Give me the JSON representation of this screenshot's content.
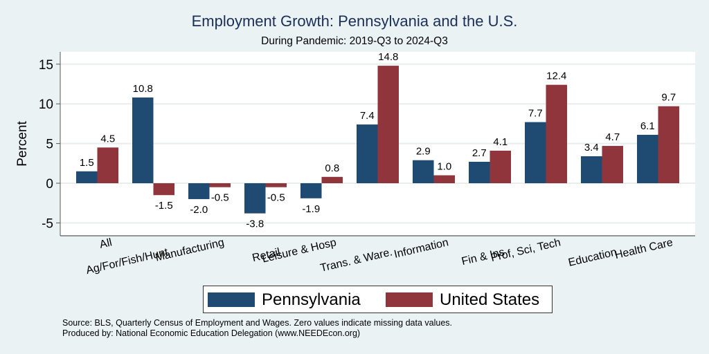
{
  "title": "Employment Growth: Pennsylvania and the U.S.",
  "subtitle": "During Pandemic: 2019-Q3 to 2024-Q3",
  "legend": {
    "items": [
      {
        "label": "Pennsylvania",
        "color": "#1f4a72"
      },
      {
        "label": "United States",
        "color": "#90353b"
      }
    ]
  },
  "notes": {
    "source": "Source: BLS, Quarterly Census of Employment and Wages. Zero values indicate missing data values.",
    "produced_by": "Produced by: National Economic Education Delegation (www.NEEDEcon.org)"
  },
  "chart_data": {
    "type": "bar",
    "title": "Employment Growth: Pennsylvania and the U.S.",
    "subtitle": "During Pandemic: 2019-Q3 to 2024-Q3",
    "xlabel": "",
    "ylabel": "Percent",
    "ylim": [
      -6.5,
      16.5
    ],
    "yticks": [
      -5,
      0,
      5,
      10,
      15
    ],
    "grid": true,
    "legend_position": "bottom",
    "categories": [
      "All",
      "Ag/For/Fish/Hunt",
      "Manufacturing",
      "Retail",
      "Leisure & Hosp",
      "Trans. & Ware.",
      "Information",
      "Fin & Ins",
      "Prof, Sci, Tech",
      "Education",
      "Health Care"
    ],
    "series": [
      {
        "name": "Pennsylvania",
        "color": "#1f4a72",
        "values": [
          1.5,
          10.8,
          -2.0,
          -3.8,
          -1.9,
          7.4,
          2.9,
          2.7,
          7.7,
          3.4,
          6.1
        ]
      },
      {
        "name": "United States",
        "color": "#90353b",
        "values": [
          4.5,
          -1.5,
          -0.5,
          -0.5,
          0.8,
          14.8,
          1.0,
          4.1,
          12.4,
          4.7,
          9.7
        ]
      }
    ]
  }
}
